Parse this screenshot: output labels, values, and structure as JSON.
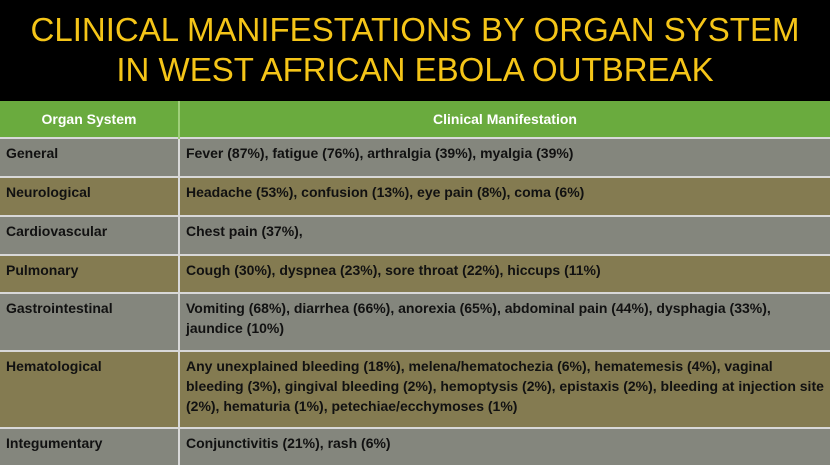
{
  "title": {
    "line1": "CLINICAL MANIFESTATIONS BY ORGAN SYSTEM",
    "line2": "IN WEST AFRICAN EBOLA OUTBREAK"
  },
  "table": {
    "headers": [
      "Organ System",
      "Clinical Manifestation"
    ],
    "rows": [
      {
        "system": "General",
        "manifestation": "Fever (87%), fatigue (76%), arthralgia (39%), myalgia (39%)"
      },
      {
        "system": "Neurological",
        "manifestation": "Headache (53%), confusion (13%), eye pain (8%), coma (6%)"
      },
      {
        "system": "Cardiovascular",
        "manifestation": "Chest pain (37%),"
      },
      {
        "system": "Pulmonary",
        "manifestation": "Cough (30%), dyspnea (23%), sore throat (22%), hiccups (11%)"
      },
      {
        "system": "Gastrointestinal",
        "manifestation": "Vomiting (68%), diarrhea (66%), anorexia (65%), abdominal pain (44%), dysphagia (33%), jaundice (10%)"
      },
      {
        "system": "Hematological",
        "manifestation": "Any unexplained bleeding (18%), melena/hematochezia (6%), hematemesis (4%), vaginal bleeding (3%), gingival bleeding (2%), hemoptysis (2%), epistaxis (2%), bleeding at injection site (2%), hematuria (1%), petechiae/ecchymoses (1%)"
      },
      {
        "system": "Integumentary",
        "manifestation": "Conjunctivitis (21%), rash (6%)"
      }
    ]
  },
  "colors": {
    "title": "#f5c518",
    "header_bg": "#6aab3e",
    "row_gray": "#84867d",
    "row_olive": "#847b51"
  }
}
